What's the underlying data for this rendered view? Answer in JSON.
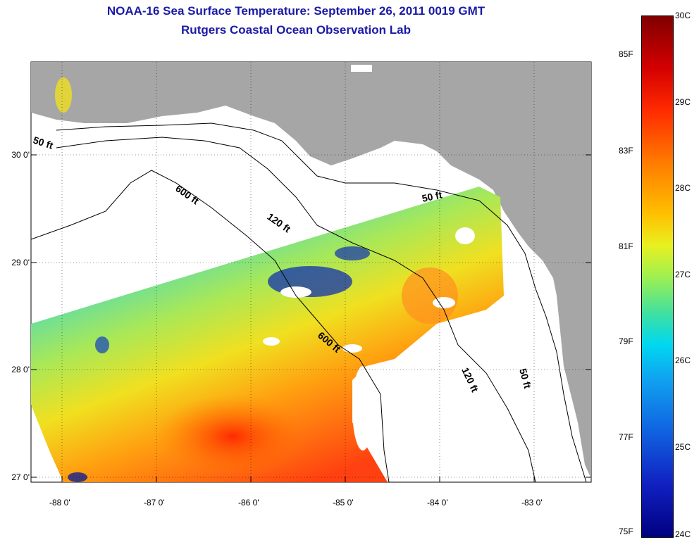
{
  "title": {
    "line1": "NOAA-16 Sea Surface Temperature:  September 26, 2011 0019 GMT",
    "line2": "Rutgers Coastal Ocean Observation Lab"
  },
  "axes": {
    "y_labels": [
      "30 0'",
      "29 0'",
      "28 0'",
      "27 0'"
    ],
    "x_labels": [
      "-88 0'",
      "-87 0'",
      "-86 0'",
      "-85 0'",
      "-84 0'",
      "-83 0'"
    ]
  },
  "contours": {
    "c50_left": "50 ft",
    "c600_top": "600 ft",
    "c120_top": "120 ft",
    "c50_top": "50 ft",
    "c600_mid": "600 ft",
    "c120_right": "120 ft",
    "c50_right": "50 ft"
  },
  "colorbar": {
    "fahrenheit": [
      "85F",
      "83F",
      "81F",
      "79F",
      "77F",
      "75F"
    ],
    "celsius": [
      "30C",
      "29C",
      "28C",
      "27C",
      "26C",
      "25C",
      "24C"
    ],
    "range_c": [
      24,
      30
    ],
    "range_f": [
      75,
      86
    ]
  },
  "colors": {
    "land": "#a6a6a6",
    "title": "#1a1aa6",
    "cloud_mask": "#ffffff"
  }
}
